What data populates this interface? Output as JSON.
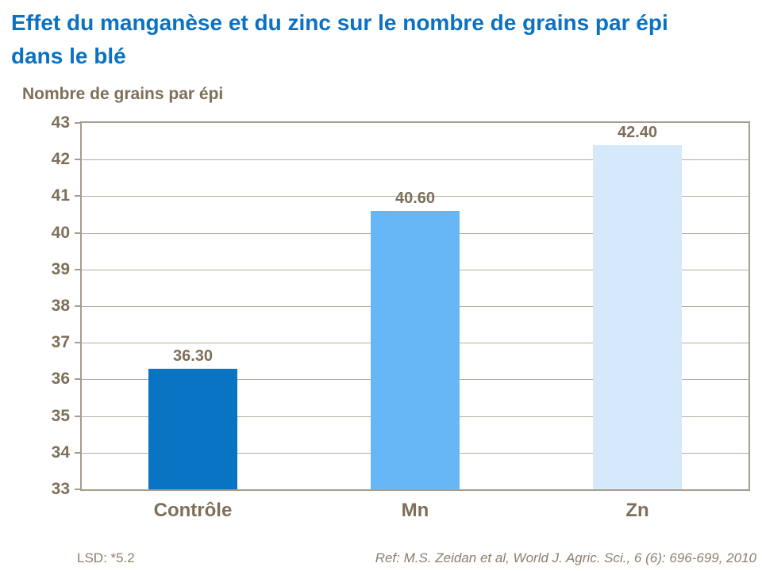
{
  "colors": {
    "background": "#FFFFFF",
    "title_blue": "#0B71C2",
    "label_brown": "#7D6F5A",
    "footer_brown": "#8C7E6C",
    "grid_line": "#B5ACA0",
    "plot_border": "#A79D8F"
  },
  "chart_data": {
    "type": "bar",
    "title": "Effet du manganèse et du zinc sur le nombre de grains par épi dans le blé",
    "ylabel": "Nombre de grains par épi",
    "xlabel": "",
    "categories": [
      "Contrôle",
      "Mn",
      "Zn"
    ],
    "values": [
      36.3,
      40.6,
      42.4
    ],
    "data_labels": [
      "36.30",
      "40.60",
      "42.40"
    ],
    "bar_colors": [
      "#0974C2",
      "#67B7F7",
      "#D6E9FB"
    ],
    "ylim": [
      33,
      43
    ],
    "ytick_step": 1,
    "yticks": [
      43,
      42,
      41,
      40,
      39,
      38,
      37,
      36,
      35,
      34,
      33
    ],
    "grid": true,
    "legend": false,
    "lsd_note": "LSD: *5.2",
    "reference": "Ref: M.S. Zeidan et al, World J. Agric. Sci., 6 (6): 696-699, 2010"
  }
}
